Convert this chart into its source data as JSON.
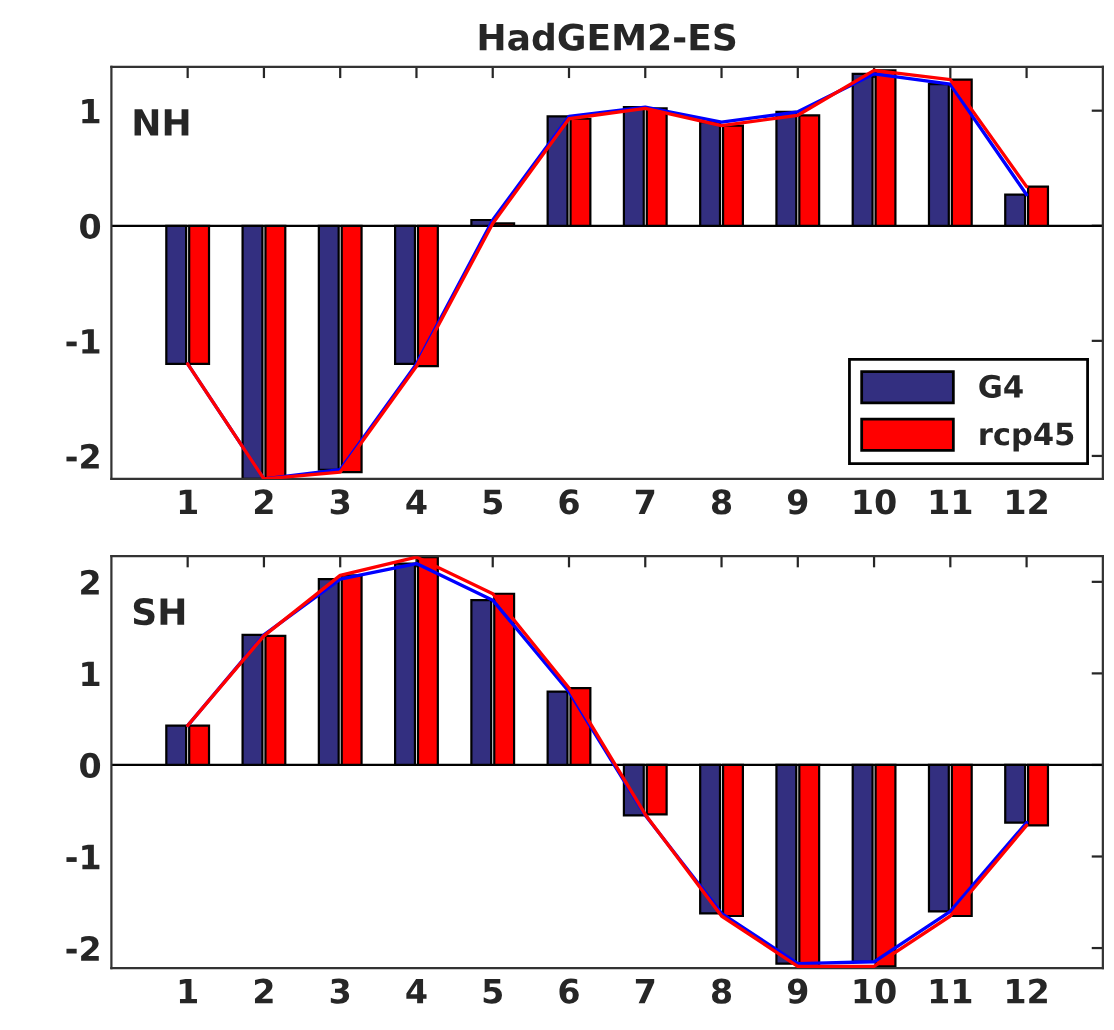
{
  "chart_data": [
    {
      "type": "bar",
      "title": "HadGEM2-ES",
      "annotations": [
        "NH"
      ],
      "categories": [
        "1",
        "2",
        "3",
        "4",
        "5",
        "6",
        "7",
        "8",
        "9",
        "10",
        "11",
        "12"
      ],
      "ylim": [
        -2.2,
        1.38
      ],
      "yticks": [
        -2,
        -1,
        0,
        1
      ],
      "legend": "bottom right",
      "ref_lines": [
        {
          "axis": "y",
          "value": 0,
          "color": "#000000"
        }
      ],
      "series": [
        {
          "name": "G4",
          "color": "#332f80",
          "values": [
            -1.2,
            -2.2,
            -2.12,
            -1.2,
            0.05,
            0.95,
            1.03,
            0.9,
            0.99,
            1.32,
            1.23,
            0.27
          ]
        },
        {
          "name": "rcp45",
          "color": "#ff0000",
          "values": [
            -1.2,
            -2.2,
            -2.14,
            -1.22,
            0.02,
            0.93,
            1.02,
            0.87,
            0.96,
            1.35,
            1.27,
            0.34
          ]
        },
        {
          "type": "line",
          "color": "#0000ff",
          "values": [
            -1.2,
            -2.2,
            -2.12,
            -1.2,
            0.05,
            0.95,
            1.03,
            0.9,
            0.99,
            1.32,
            1.23,
            0.27
          ]
        },
        {
          "type": "line",
          "color": "#ff0000",
          "values": [
            -1.2,
            -2.2,
            -2.14,
            -1.22,
            0.02,
            0.93,
            1.02,
            0.87,
            0.96,
            1.35,
            1.27,
            0.34
          ]
        }
      ]
    },
    {
      "type": "bar",
      "annotations": [
        "SH"
      ],
      "categories": [
        "1",
        "2",
        "3",
        "4",
        "5",
        "6",
        "7",
        "8",
        "9",
        "10",
        "11",
        "12"
      ],
      "ylim": [
        -2.22,
        2.28
      ],
      "yticks": [
        -2,
        -1,
        0,
        1,
        2
      ],
      "ref_lines": [
        {
          "axis": "y",
          "value": 0,
          "color": "#000000"
        }
      ],
      "series": [
        {
          "color": "#332f80",
          "values": [
            0.43,
            1.42,
            2.03,
            2.2,
            1.8,
            0.8,
            -0.55,
            -1.62,
            -2.17,
            -2.15,
            -1.6,
            -0.63
          ]
        },
        {
          "color": "#ff0000",
          "values": [
            0.43,
            1.41,
            2.07,
            2.27,
            1.87,
            0.84,
            -0.54,
            -1.65,
            -2.2,
            -2.2,
            -1.65,
            -0.66
          ]
        },
        {
          "type": "line",
          "color": "#0000ff",
          "values": [
            0.43,
            1.42,
            2.03,
            2.2,
            1.8,
            0.8,
            -0.55,
            -1.62,
            -2.17,
            -2.15,
            -1.6,
            -0.63
          ]
        },
        {
          "type": "line",
          "color": "#ff0000",
          "values": [
            0.43,
            1.41,
            2.07,
            2.27,
            1.87,
            0.84,
            -0.54,
            -1.65,
            -2.2,
            -2.2,
            -1.65,
            -0.66
          ]
        }
      ]
    }
  ]
}
